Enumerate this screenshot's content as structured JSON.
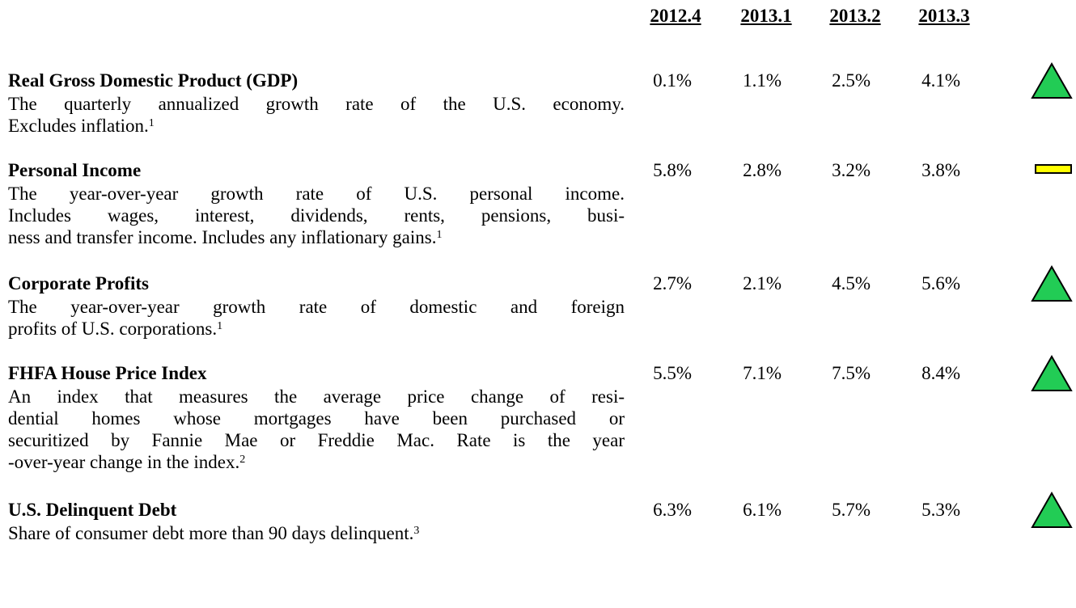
{
  "table": {
    "columns": [
      "2012.4",
      "2013.1",
      "2013.2",
      "2013.3"
    ],
    "rows": [
      {
        "title": "Real Gross Domestic Product  (GDP)",
        "lines": [
          "The quarterly annualized growth rate of the U.S. economy.",
          "Excludes inflation."
        ],
        "footnote": "1",
        "values": [
          "0.1%",
          "1.1%",
          "2.5%",
          "4.1%"
        ]
      },
      {
        "title": "Personal Income",
        "lines": [
          "The year-over-year growth rate of U.S. personal income.",
          "Includes wages, interest, dividends, rents, pensions, busi-",
          "ness and transfer income. Includes any inflationary gains."
        ],
        "footnote": "1",
        "values": [
          "5.8%",
          "2.8%",
          "3.2%",
          "3.8%"
        ]
      },
      {
        "title": "Corporate Profits",
        "lines": [
          "The year-over-year growth rate of domestic and foreign",
          "profits of U.S. corporations."
        ],
        "footnote": "1",
        "values": [
          "2.7%",
          "2.1%",
          "4.5%",
          "5.6%"
        ]
      },
      {
        "title": "FHFA House Price Index",
        "lines": [
          "An index that measures the average price change of resi-",
          "dential homes whose mortgages have been purchased or",
          "securitized by Fannie Mae or Freddie Mac. Rate is the year",
          "-over-year change in the index."
        ],
        "footnote": "2",
        "values": [
          "5.5%",
          "7.1%",
          "7.5%",
          "8.4%"
        ]
      },
      {
        "title": "U.S. Delinquent Debt",
        "lines": [
          "Share of consumer debt more than 90 days delinquent."
        ],
        "footnote": "3",
        "values": [
          "6.3%",
          "6.1%",
          "5.7%",
          "5.3%"
        ]
      }
    ]
  }
}
